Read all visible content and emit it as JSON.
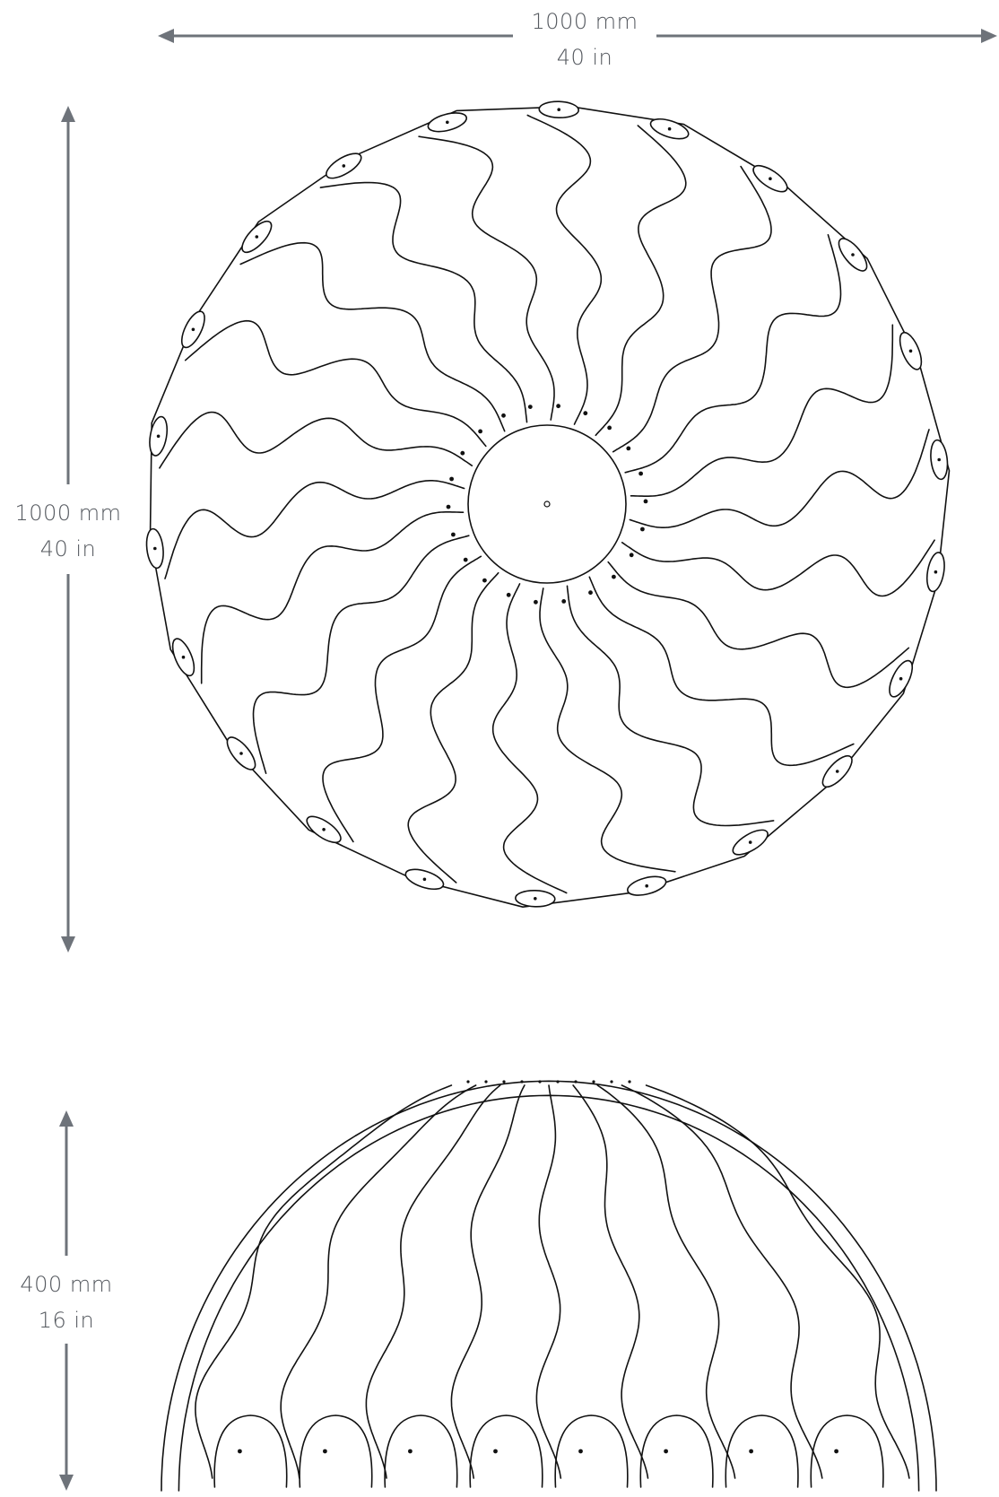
{
  "dimensions": {
    "width": {
      "mm": "1000 mm",
      "in": "40 in"
    },
    "height_top": {
      "mm": "1000 mm",
      "in": "40 in"
    },
    "height_side": {
      "mm": "400 mm",
      "in": "16 in"
    }
  },
  "drawing": {
    "top_view_petal_count": 22,
    "side_view_visible_petals": 8
  },
  "colors": {
    "dimension_ink": "#6e737a",
    "dimension_text": "#55595f",
    "line_ink": "#111111",
    "background": "#ffffff"
  }
}
